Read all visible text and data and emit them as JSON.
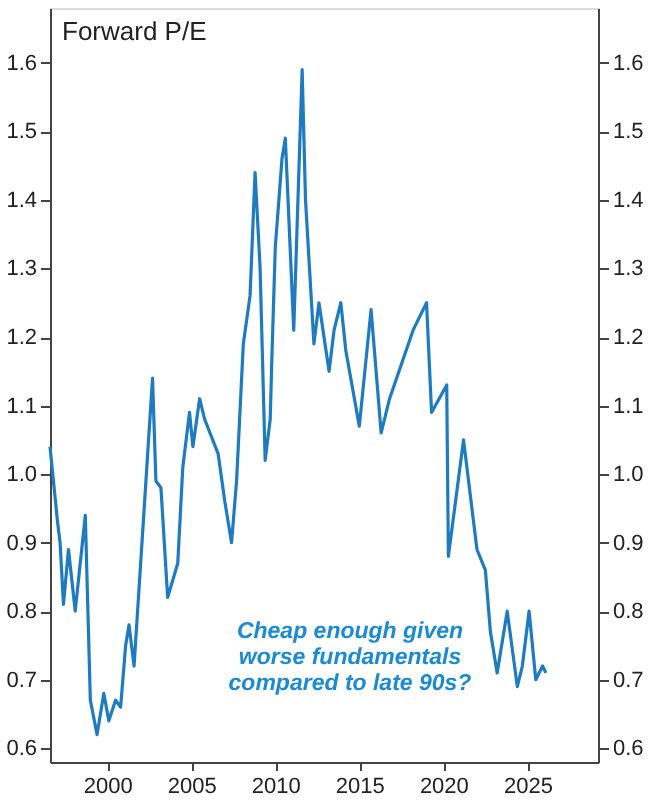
{
  "chart_data": {
    "type": "line",
    "title": "Forward P/E",
    "x": [
      1996.6,
      1997.05,
      1997.2,
      1997.4,
      1997.7,
      1998.1,
      1998.7,
      1999.0,
      1999.4,
      1999.8,
      2000.1,
      2000.5,
      2000.8,
      2001.1,
      2001.3,
      2001.6,
      2002.7,
      2002.9,
      2003.2,
      2003.6,
      2004.2,
      2004.5,
      2004.9,
      2005.1,
      2005.5,
      2005.8,
      2006.6,
      2007.0,
      2007.4,
      2007.7,
      2008.1,
      2008.5,
      2008.8,
      2009.1,
      2009.4,
      2009.7,
      2009.8,
      2010.0,
      2010.4,
      2010.6,
      2011.1,
      2011.6,
      2011.8,
      2012.3,
      2012.6,
      2013.2,
      2013.5,
      2013.9,
      2014.2,
      2015.0,
      2015.7,
      2016.3,
      2016.8,
      2018.2,
      2019.0,
      2019.3,
      2020.2,
      2020.3,
      2021.2,
      2022.0,
      2022.5,
      2022.8,
      2023.2,
      2023.8,
      2024.4,
      2024.7,
      2025.1,
      2025.5,
      2025.9,
      2026.1
    ],
    "series": [
      {
        "color": "#1f7bc1",
        "values": [
          1.04,
          0.93,
          0.9,
          0.81,
          0.89,
          0.8,
          0.94,
          0.67,
          0.62,
          0.68,
          0.64,
          0.67,
          0.66,
          0.75,
          0.78,
          0.72,
          1.14,
          0.99,
          0.98,
          0.82,
          0.87,
          1.01,
          1.09,
          1.04,
          1.11,
          1.08,
          1.03,
          0.96,
          0.9,
          0.99,
          1.19,
          1.26,
          1.44,
          1.3,
          1.02,
          1.08,
          1.17,
          1.33,
          1.46,
          1.49,
          1.21,
          1.59,
          1.4,
          1.19,
          1.25,
          1.15,
          1.21,
          1.25,
          1.18,
          1.07,
          1.24,
          1.06,
          1.11,
          1.21,
          1.25,
          1.09,
          1.13,
          0.88,
          1.05,
          0.89,
          0.86,
          0.77,
          0.71,
          0.8,
          0.69,
          0.72,
          0.8,
          0.7,
          0.72,
          0.71
        ]
      }
    ],
    "xlim": [
      1996.6,
      2029.2
    ],
    "xticks": [
      2000,
      2005,
      2010,
      2015,
      2020,
      2025
    ],
    "ylim": [
      0.58,
      1.68
    ],
    "yticks": [
      0.6,
      0.7,
      0.8,
      0.9,
      {
        "value": 1.0,
        "label": "1.0"
      },
      1.1,
      1.2,
      1.3,
      1.4,
      1.5,
      1.6
    ],
    "y2lim": [
      0.58,
      1.68
    ],
    "y2ticks": [
      0.6,
      0.7,
      0.8,
      0.9,
      {
        "value": 1.0,
        "label": "1.0"
      },
      1.1,
      1.2,
      1.3,
      1.4,
      1.5,
      1.6
    ],
    "annotations": [
      "Cheap enough given\nworse fundamentals\ncompared to late 90s?"
    ],
    "grid": false,
    "legend": false
  }
}
